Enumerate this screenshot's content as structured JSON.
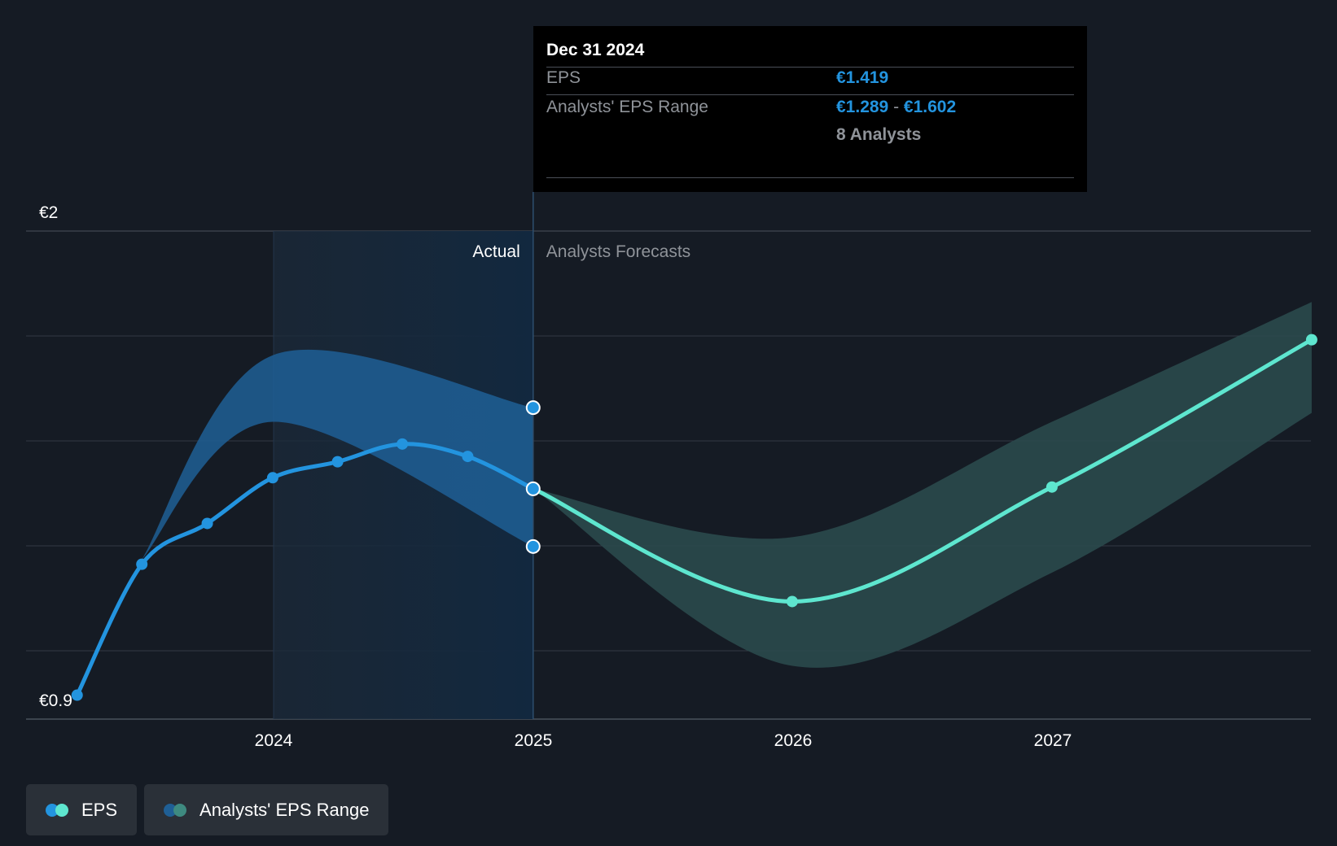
{
  "tooltip": {
    "date": "Dec 31 2024",
    "eps_label": "EPS",
    "eps_value": "€1.419",
    "range_label": "Analysts' EPS Range",
    "range_low": "€1.289",
    "range_sep": "-",
    "range_high": "€1.602",
    "analysts": "8 Analysts"
  },
  "sections": {
    "actual": "Actual",
    "forecast": "Analysts Forecasts"
  },
  "legend": {
    "eps": "EPS",
    "range": "Analysts' EPS Range"
  },
  "colors": {
    "eps_actual": "#2394df",
    "eps_forecast": "#5ee6cf",
    "range_actual": "#1f5f95",
    "range_forecast": "#2a4a4c",
    "background": "#151b24",
    "grid": "#323a44",
    "legend_eps_swatch": [
      "#2394df",
      "#5ee6cf"
    ],
    "legend_range_swatch": [
      "#1f5f95",
      "#3e8a80"
    ]
  },
  "chart_data": {
    "type": "line",
    "ylim": [
      0.9,
      2.0
    ],
    "ytick_labels": [
      {
        "value": 2.0,
        "label": "€2"
      },
      {
        "value": 0.9,
        "label": "€0.9"
      }
    ],
    "xlim": [
      "2023-01-01",
      "2027-12-31"
    ],
    "xtick_labels": [
      {
        "date": "2024-01-01",
        "label": "2024"
      },
      {
        "date": "2025-01-01",
        "label": "2025"
      },
      {
        "date": "2026-01-01",
        "label": "2026"
      },
      {
        "date": "2027-01-01",
        "label": "2027"
      }
    ],
    "grid": true,
    "actual_forecast_split": "2024-12-31",
    "highlight_date": "2024-12-31",
    "series": [
      {
        "name": "EPS",
        "kind": "actual",
        "points": [
          {
            "x": "2023-03-31",
            "y": 0.954
          },
          {
            "x": "2023-06-30",
            "y": 1.249
          },
          {
            "x": "2023-09-30",
            "y": 1.341
          },
          {
            "x": "2023-12-31",
            "y": 1.444
          },
          {
            "x": "2024-03-31",
            "y": 1.48
          },
          {
            "x": "2024-06-30",
            "y": 1.52
          },
          {
            "x": "2024-09-30",
            "y": 1.492
          },
          {
            "x": "2024-12-31",
            "y": 1.419
          }
        ]
      },
      {
        "name": "EPS",
        "kind": "forecast",
        "points": [
          {
            "x": "2024-12-31",
            "y": 1.419
          },
          {
            "x": "2025-12-31",
            "y": 1.165
          },
          {
            "x": "2026-12-31",
            "y": 1.423
          },
          {
            "x": "2027-12-31",
            "y": 1.755
          }
        ]
      }
    ],
    "ranges": [
      {
        "name": "Analysts' EPS Range",
        "kind": "actual",
        "points": [
          {
            "x": "2023-06-30",
            "low": 1.26,
            "high": 1.26
          },
          {
            "x": "2023-12-31",
            "low": 1.57,
            "high": 1.72
          },
          {
            "x": "2024-12-31",
            "low": 1.289,
            "high": 1.602
          }
        ]
      },
      {
        "name": "Analysts' EPS Range",
        "kind": "forecast",
        "points": [
          {
            "x": "2024-12-31",
            "low": 1.419,
            "high": 1.419
          },
          {
            "x": "2025-12-31",
            "low": 1.02,
            "high": 1.31
          },
          {
            "x": "2026-12-31",
            "low": 1.23,
            "high": 1.57
          },
          {
            "x": "2027-12-31",
            "low": 1.59,
            "high": 1.84
          }
        ]
      }
    ]
  }
}
